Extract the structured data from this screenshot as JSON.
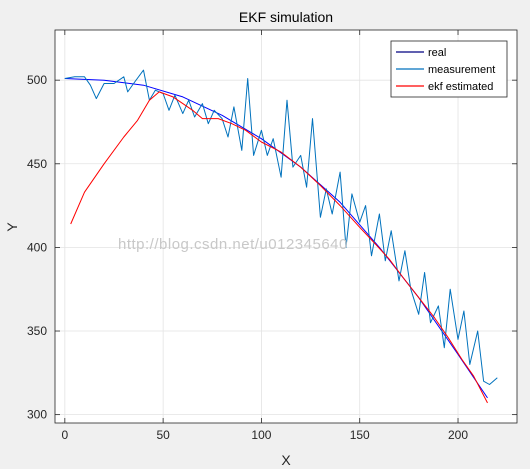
{
  "figure": {
    "watermark": "http://blog.csdn.net/u012345640"
  },
  "chart_data": {
    "type": "line",
    "title": "EKF simulation",
    "xlabel": "X",
    "ylabel": "Y",
    "xlim": [
      -5,
      230
    ],
    "ylim": [
      295,
      530
    ],
    "xticks": [
      0,
      50,
      100,
      150,
      200
    ],
    "yticks": [
      300,
      350,
      400,
      450,
      500
    ],
    "grid": true,
    "legend_position": "top-right",
    "series": [
      {
        "name": "real",
        "color": "#0000ff",
        "x": [
          0,
          20,
          40,
          60,
          80,
          100,
          120,
          140,
          160,
          180,
          200,
          215
        ],
        "y": [
          501,
          500,
          497,
          490,
          479,
          465,
          448,
          427,
          400,
          370,
          336,
          310
        ]
      },
      {
        "name": "measurement",
        "color": "#0072bd",
        "x": [
          0,
          5,
          10,
          13,
          16,
          20,
          25,
          30,
          32,
          35,
          40,
          43,
          46,
          50,
          53,
          56,
          60,
          63,
          66,
          70,
          73,
          76,
          80,
          83,
          86,
          90,
          93,
          96,
          100,
          103,
          106,
          110,
          113,
          116,
          120,
          123,
          126,
          130,
          133,
          136,
          140,
          143,
          146,
          150,
          153,
          156,
          160,
          163,
          166,
          170,
          173,
          176,
          180,
          183,
          186,
          190,
          193,
          196,
          200,
          203,
          206,
          210,
          213,
          216,
          220
        ],
        "y": [
          501,
          502,
          502,
          497,
          489,
          498,
          498,
          502,
          493,
          498,
          506,
          488,
          494,
          492,
          482,
          491,
          480,
          488,
          478,
          486,
          474,
          482,
          477,
          466,
          484,
          458,
          501,
          455,
          470,
          455,
          465,
          442,
          488,
          448,
          455,
          436,
          477,
          418,
          435,
          420,
          445,
          400,
          432,
          415,
          425,
          395,
          420,
          392,
          410,
          380,
          398,
          375,
          360,
          385,
          355,
          365,
          340,
          375,
          345,
          362,
          330,
          350,
          320,
          318,
          322
        ]
      },
      {
        "name": "ekf estimated",
        "color": "#ff0000",
        "x": [
          3,
          10,
          20,
          30,
          37,
          43,
          48,
          55,
          60,
          65,
          70,
          78,
          85,
          92,
          100,
          110,
          120,
          130,
          140,
          150,
          158,
          165,
          172,
          180,
          188,
          195,
          202,
          208,
          215
        ],
        "y": [
          414,
          433,
          450,
          466,
          476,
          488,
          493,
          490,
          486,
          482,
          477,
          477,
          474,
          470,
          463,
          457,
          448,
          437,
          425,
          412,
          402,
          393,
          382,
          370,
          358,
          346,
          333,
          323,
          307
        ]
      }
    ]
  }
}
